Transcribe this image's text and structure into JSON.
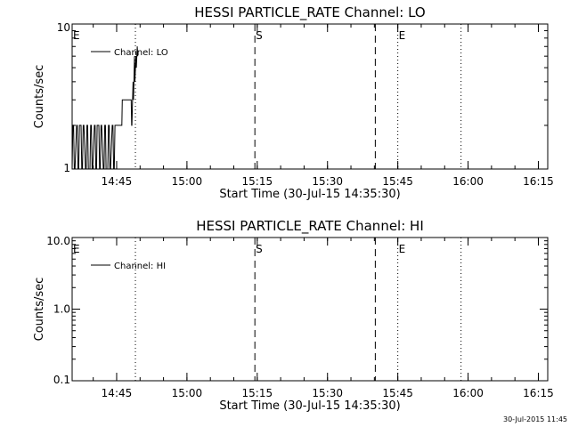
{
  "chart_data": [
    {
      "type": "line",
      "title": "HESSI PARTICLE_RATE Channel: LO",
      "xlabel": "Start Time (30-Jul-15 14:35:30)",
      "ylabel": "Counts/sec",
      "yscale": "log",
      "ylim": [
        1,
        10
      ],
      "ytick_labels": [
        {
          "v": 1,
          "label": "1"
        },
        {
          "v": 10,
          "label": "10"
        }
      ],
      "xlim_minutes": [
        0,
        101.5
      ],
      "xtick_labels": [
        {
          "m": 9.5,
          "label": "14:45"
        },
        {
          "m": 24.5,
          "label": "15:00"
        },
        {
          "m": 39.5,
          "label": "15:15"
        },
        {
          "m": 54.5,
          "label": "15:30"
        },
        {
          "m": 69.5,
          "label": "15:45"
        },
        {
          "m": 84.5,
          "label": "16:00"
        },
        {
          "m": 99.5,
          "label": "16:15"
        }
      ],
      "vlines": [
        {
          "m": 0,
          "style": "dotted",
          "label": "E"
        },
        {
          "m": 13.5,
          "style": "dotted",
          "label": ""
        },
        {
          "m": 39.0,
          "style": "dashed",
          "label": "S"
        },
        {
          "m": 64.7,
          "style": "dashed",
          "label": ""
        },
        {
          "m": 69.5,
          "style": "dotted",
          "label": "E"
        },
        {
          "m": 83.0,
          "style": "dotted",
          "label": ""
        }
      ],
      "legend": "top-left",
      "series": [
        {
          "name": "Channel: LO",
          "x_minutes": [
            0.0,
            0.15,
            0.3,
            0.45,
            0.6,
            0.95,
            1.1,
            1.25,
            1.4,
            1.55,
            1.9,
            2.05,
            2.2,
            2.35,
            2.5,
            2.85,
            3.0,
            3.15,
            3.3,
            3.45,
            3.8,
            3.95,
            4.1,
            4.25,
            4.4,
            4.75,
            4.9,
            5.05,
            5.2,
            5.35,
            5.7,
            5.85,
            6.0,
            6.15,
            6.3,
            6.65,
            6.8,
            6.95,
            7.1,
            7.25,
            7.6,
            7.75,
            7.9,
            8.05,
            8.2,
            8.55,
            8.7,
            8.85,
            9.0,
            9.15,
            10.6,
            10.7,
            12.6,
            12.7,
            12.75,
            13.0,
            13.1,
            13.3,
            13.4,
            13.6,
            13.7,
            13.9,
            14.0
          ],
          "values": [
            1,
            2,
            2,
            1,
            1,
            2,
            2,
            1,
            1,
            2,
            2,
            1,
            1,
            2,
            2,
            1,
            1,
            2,
            2,
            1,
            1,
            2,
            2,
            1,
            1,
            2,
            2,
            1,
            1,
            2,
            2,
            1,
            1,
            2,
            2,
            1,
            1,
            2,
            2,
            1,
            1,
            2,
            2,
            1,
            1,
            2,
            2,
            1,
            1,
            2,
            2,
            3,
            3,
            2,
            2,
            4,
            3,
            6,
            4,
            6,
            5,
            7,
            6
          ]
        }
      ]
    },
    {
      "type": "line",
      "title": "HESSI PARTICLE_RATE Channel: HI",
      "xlabel": "Start Time (30-Jul-15 14:35:30)",
      "ylabel": "Counts/sec",
      "yscale": "log",
      "ylim": [
        0.1,
        10.0
      ],
      "ytick_labels": [
        {
          "v": 0.1,
          "label": "0.1"
        },
        {
          "v": 1.0,
          "label": "1.0"
        },
        {
          "v": 10.0,
          "label": "10.0"
        }
      ],
      "xlim_minutes": [
        0,
        101.5
      ],
      "xtick_labels": [
        {
          "m": 9.5,
          "label": "14:45"
        },
        {
          "m": 24.5,
          "label": "15:00"
        },
        {
          "m": 39.5,
          "label": "15:15"
        },
        {
          "m": 54.5,
          "label": "15:30"
        },
        {
          "m": 69.5,
          "label": "15:45"
        },
        {
          "m": 84.5,
          "label": "16:00"
        },
        {
          "m": 99.5,
          "label": "16:15"
        }
      ],
      "vlines": [
        {
          "m": 0,
          "style": "dotted",
          "label": "E"
        },
        {
          "m": 13.5,
          "style": "dotted",
          "label": ""
        },
        {
          "m": 39.0,
          "style": "dashed",
          "label": "S"
        },
        {
          "m": 64.7,
          "style": "dashed",
          "label": ""
        },
        {
          "m": 69.5,
          "style": "dotted",
          "label": "E"
        },
        {
          "m": 83.0,
          "style": "dotted",
          "label": ""
        }
      ],
      "legend": "top-left",
      "series": [
        {
          "name": "Channel: HI",
          "x_minutes": [],
          "values": []
        }
      ]
    }
  ],
  "footer": {
    "timestamp": "30-Jul-2015 11:45"
  }
}
